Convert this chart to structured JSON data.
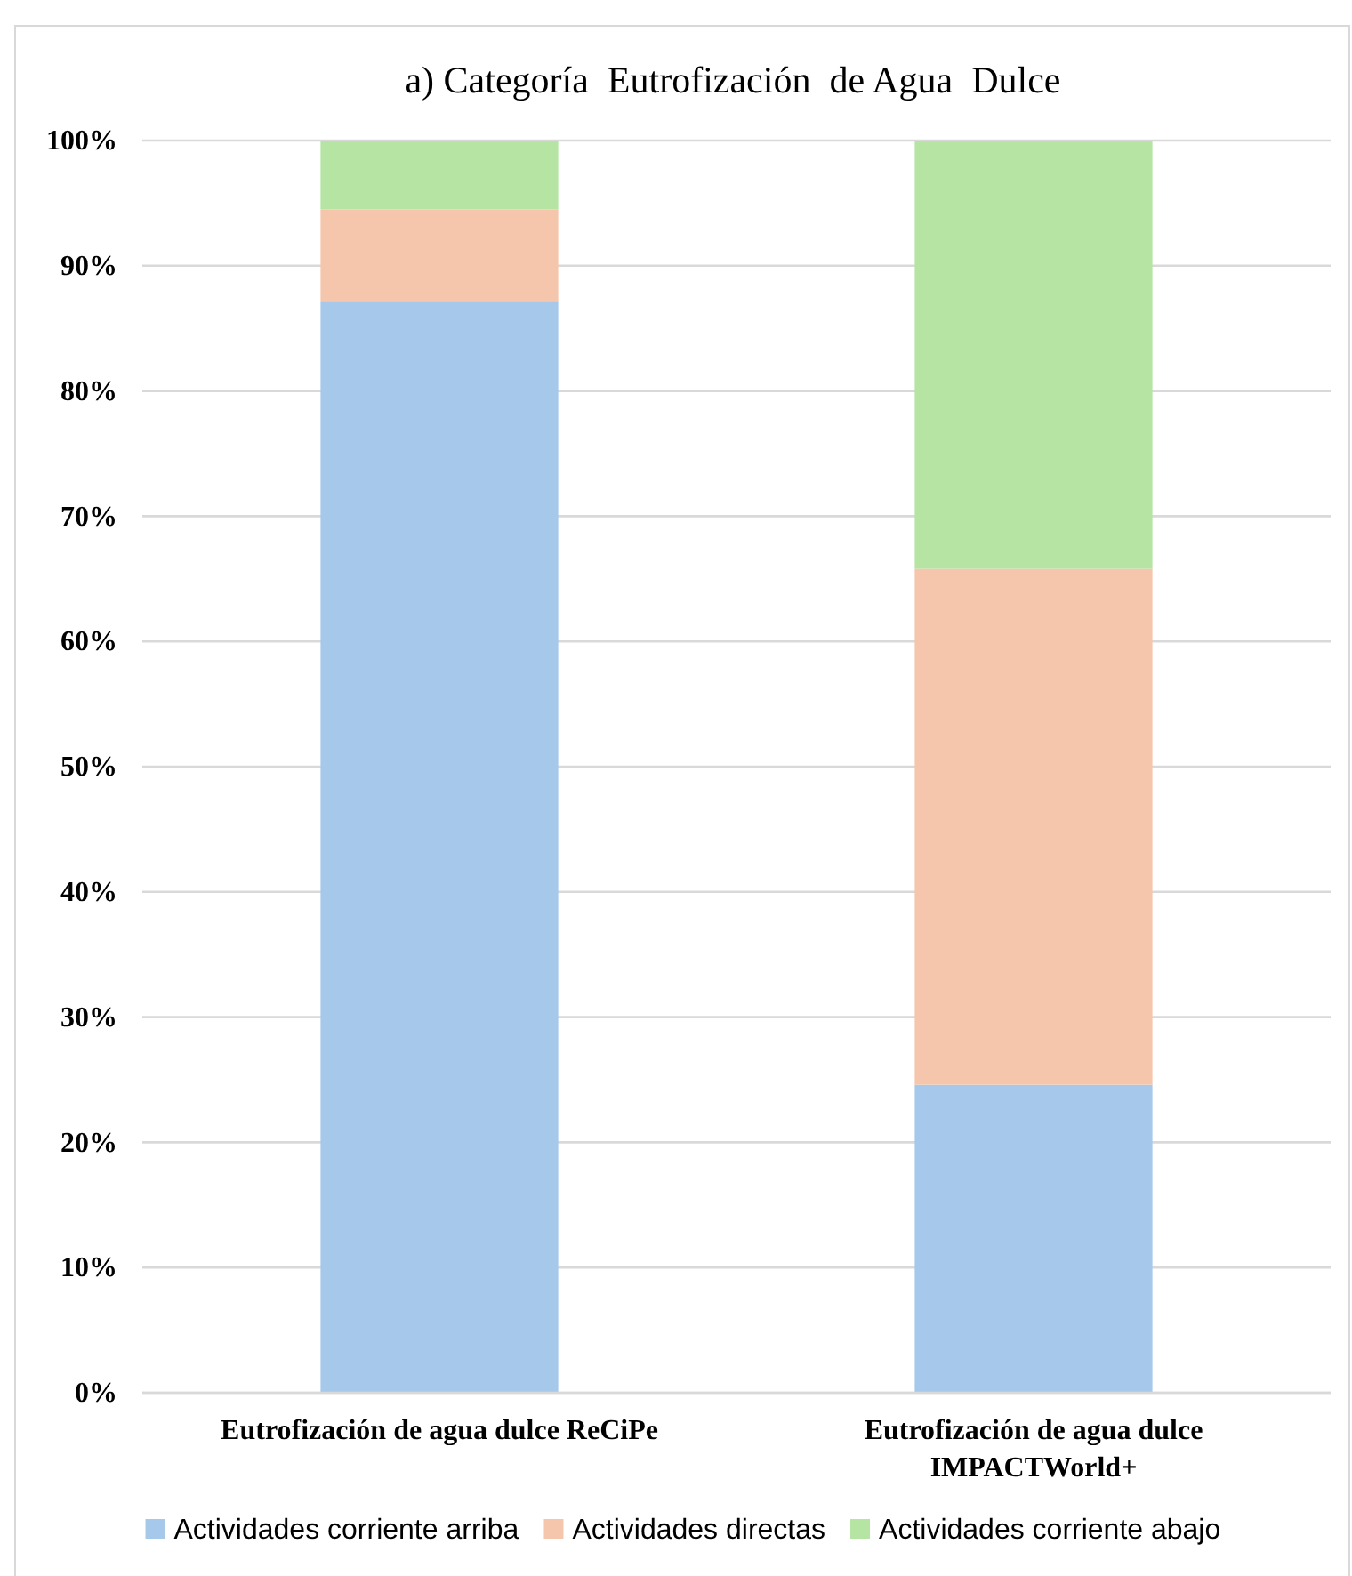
{
  "chart_data": {
    "type": "bar",
    "title": "a) Categoría  Eutrofización  de Agua  Dulce",
    "categories": [
      "Eutrofización de agua dulce ReCiPe",
      "Eutrofización de agua dulce IMPACTWorld+"
    ],
    "series": [
      {
        "name": "Actividades corriente arriba",
        "color": "#a6c8ea",
        "values": [
          87.2,
          24.6
        ]
      },
      {
        "name": "Actividades directas",
        "color": "#f5c6ab",
        "values": [
          7.3,
          41.2
        ]
      },
      {
        "name": "Actividades corriente abajo",
        "color": "#b5e4a3",
        "values": [
          5.5,
          34.2
        ]
      }
    ],
    "stacked": true,
    "ylim": [
      0,
      100
    ],
    "yticks": [
      {
        "value": 0,
        "label": "0%"
      },
      {
        "value": 10,
        "label": "10%"
      },
      {
        "value": 20,
        "label": "20%"
      },
      {
        "value": 30,
        "label": "30%"
      },
      {
        "value": 40,
        "label": "40%"
      },
      {
        "value": 50,
        "label": "50%"
      },
      {
        "value": 60,
        "label": "60%"
      },
      {
        "value": 70,
        "label": "70%"
      },
      {
        "value": 80,
        "label": "80%"
      },
      {
        "value": 90,
        "label": "90%"
      },
      {
        "value": 100,
        "label": "100%"
      }
    ],
    "grid": "y",
    "legend": "bottom"
  }
}
